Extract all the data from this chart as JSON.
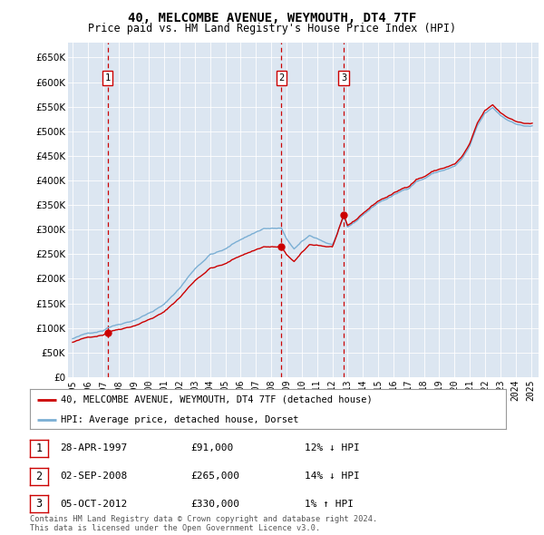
{
  "title": "40, MELCOMBE AVENUE, WEYMOUTH, DT4 7TF",
  "subtitle": "Price paid vs. HM Land Registry's House Price Index (HPI)",
  "property_label": "40, MELCOMBE AVENUE, WEYMOUTH, DT4 7TF (detached house)",
  "hpi_label": "HPI: Average price, detached house, Dorset",
  "sales": [
    {
      "num": 1,
      "date": "28-APR-1997",
      "price": 91000,
      "year": 1997.29,
      "hpi_pct": "12% ↓ HPI"
    },
    {
      "num": 2,
      "date": "02-SEP-2008",
      "price": 265000,
      "year": 2008.67,
      "hpi_pct": "14% ↓ HPI"
    },
    {
      "num": 3,
      "date": "05-OCT-2012",
      "price": 330000,
      "year": 2012.75,
      "hpi_pct": "1% ↑ HPI"
    }
  ],
  "property_color": "#cc0000",
  "hpi_color": "#7bafd4",
  "background_color": "#dce6f1",
  "grid_color": "#ffffff",
  "ylim": [
    0,
    680000
  ],
  "yticks": [
    0,
    50000,
    100000,
    150000,
    200000,
    250000,
    300000,
    350000,
    400000,
    450000,
    500000,
    550000,
    600000,
    650000
  ],
  "footnote": "Contains HM Land Registry data © Crown copyright and database right 2024.\nThis data is licensed under the Open Government Licence v3.0."
}
